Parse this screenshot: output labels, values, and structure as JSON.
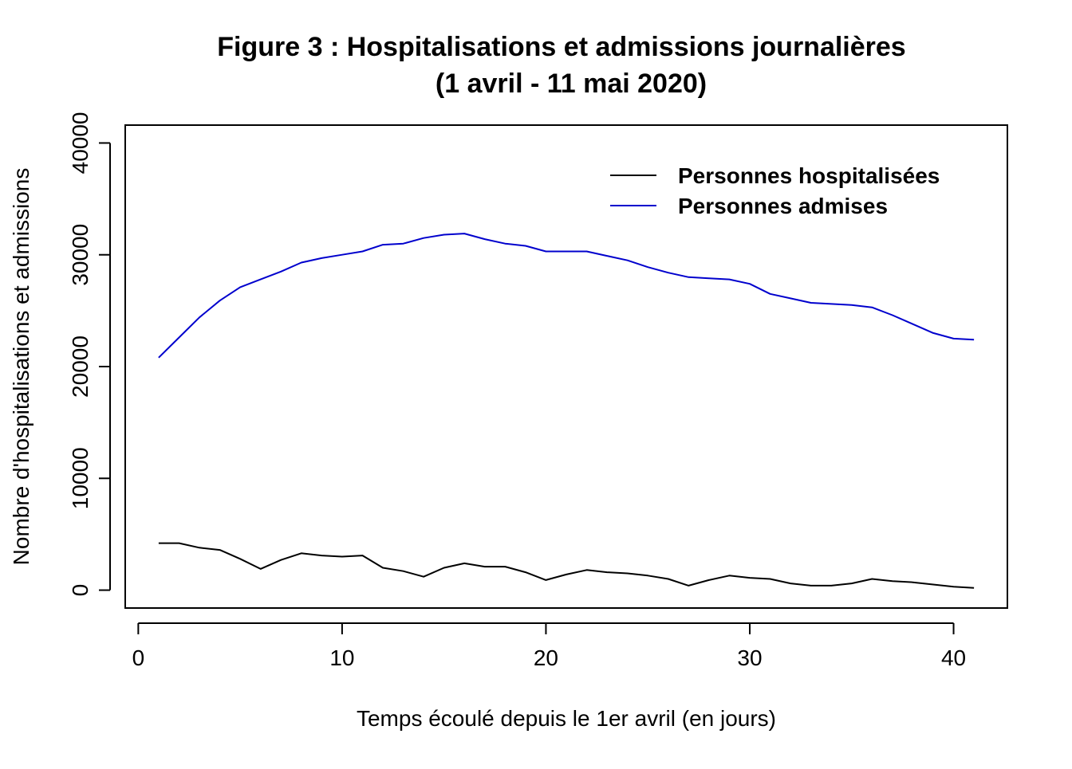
{
  "chart_data": {
    "type": "line",
    "title": "Figure 3 : Hospitalisations et admissions journalières",
    "subtitle": "(1 avril - 11 mai 2020)",
    "xlabel": "Temps écoulé depuis le 1er avril (en jours)",
    "ylabel": "Nombre d'hospitalisations et admissions",
    "xlim": [
      -0.64,
      42.64
    ],
    "ylim": [
      -1600,
      41600
    ],
    "x_ticks": [
      0,
      10,
      20,
      30,
      40
    ],
    "y_ticks": [
      0,
      10000,
      20000,
      30000,
      40000
    ],
    "grid": false,
    "legend_position": "top-right",
    "x": [
      1,
      2,
      3,
      4,
      5,
      6,
      7,
      8,
      9,
      10,
      11,
      12,
      13,
      14,
      15,
      16,
      17,
      18,
      19,
      20,
      21,
      22,
      23,
      24,
      25,
      26,
      27,
      28,
      29,
      30,
      31,
      32,
      33,
      34,
      35,
      36,
      37,
      38,
      39,
      40,
      41
    ],
    "series": [
      {
        "name": "Personnes hospitalisées",
        "color": "#000000",
        "values": [
          4200,
          4200,
          3800,
          3600,
          2800,
          1900,
          2700,
          3300,
          3100,
          3000,
          3100,
          2000,
          1700,
          1200,
          2000,
          2400,
          2100,
          2100,
          1600,
          900,
          1400,
          1800,
          1600,
          1500,
          1300,
          1000,
          400,
          900,
          1300,
          1100,
          1000,
          600,
          400,
          400,
          600,
          1000,
          800,
          700,
          500,
          300,
          200
        ]
      },
      {
        "name": "Personnes admises",
        "color": "#0000cd",
        "values": [
          20800,
          22600,
          24400,
          25900,
          27100,
          27800,
          28500,
          29300,
          29700,
          30000,
          30300,
          30900,
          31000,
          31500,
          31800,
          31900,
          31400,
          31000,
          30800,
          30300,
          30300,
          30300,
          29900,
          29500,
          28900,
          28400,
          28000,
          27900,
          27800,
          27400,
          26500,
          26100,
          25700,
          25600,
          25500,
          25300,
          24600,
          23800,
          23000,
          22500,
          22400
        ]
      }
    ]
  }
}
